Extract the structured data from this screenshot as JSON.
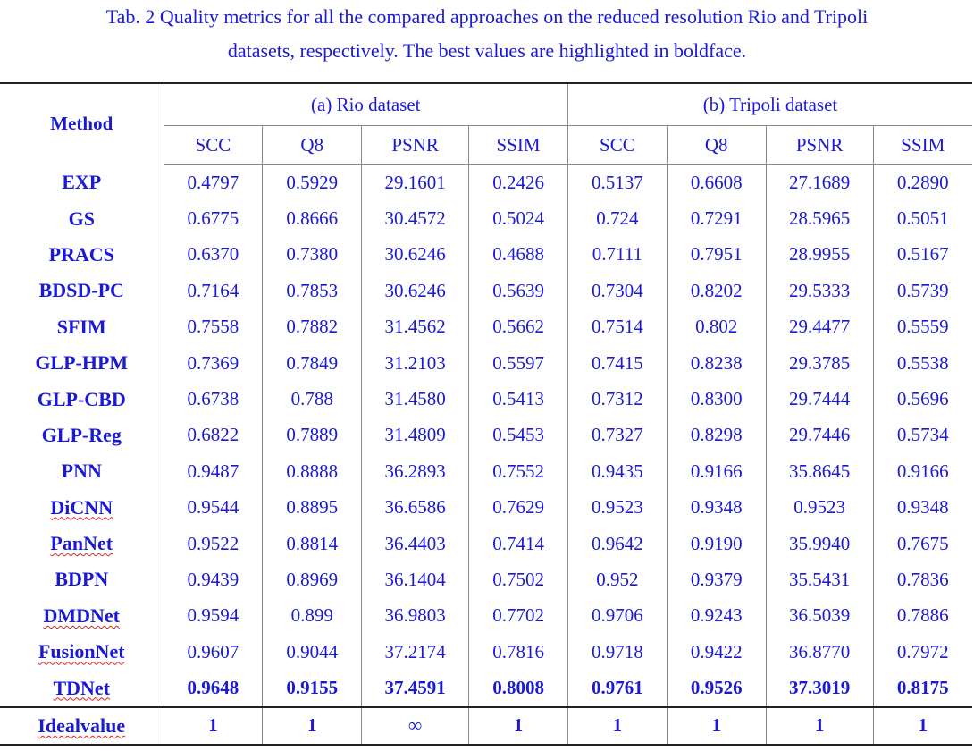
{
  "caption": {
    "line1": "Tab. 2 Quality metrics for all the compared approaches on the reduced resolution Rio and Tripoli",
    "line2": "datasets, respectively. The best values are highlighted in boldface."
  },
  "table": {
    "method_header": "Method",
    "group_a": "(a) Rio dataset",
    "group_b": "(b) Tripoli dataset",
    "metrics": [
      "SCC",
      "Q8",
      "PSNR",
      "SSIM",
      "SCC",
      "Q8",
      "PSNR",
      "SSIM"
    ],
    "rows": [
      {
        "method": "EXP",
        "values": [
          "0.4797",
          "0.5929",
          "29.1601",
          "0.2426",
          "0.5137",
          "0.6608",
          "27.1689",
          "0.2890"
        ]
      },
      {
        "method": "GS",
        "values": [
          "0.6775",
          "0.8666",
          "30.4572",
          "0.5024",
          "0.724",
          "0.7291",
          "28.5965",
          "0.5051"
        ]
      },
      {
        "method": "PRACS",
        "values": [
          "0.6370",
          "0.7380",
          "30.6246",
          "0.4688",
          "0.7111",
          "0.7951",
          "28.9955",
          "0.5167"
        ]
      },
      {
        "method": "BDSD-PC",
        "values": [
          "0.7164",
          "0.7853",
          "30.6246",
          "0.5639",
          "0.7304",
          "0.8202",
          "29.5333",
          "0.5739"
        ]
      },
      {
        "method": "SFIM",
        "values": [
          "0.7558",
          "0.7882",
          "31.4562",
          "0.5662",
          "0.7514",
          "0.802",
          "29.4477",
          "0.5559"
        ]
      },
      {
        "method": "GLP-HPM",
        "values": [
          "0.7369",
          "0.7849",
          "31.2103",
          "0.5597",
          "0.7415",
          "0.8238",
          "29.3785",
          "0.5538"
        ]
      },
      {
        "method": "GLP-CBD",
        "values": [
          "0.6738",
          "0.788",
          "31.4580",
          "0.5413",
          "0.7312",
          "0.8300",
          "29.7444",
          "0.5696"
        ]
      },
      {
        "method": "GLP-Reg",
        "values": [
          "0.6822",
          "0.7889",
          "31.4809",
          "0.5453",
          "0.7327",
          "0.8298",
          "29.7446",
          "0.5734"
        ]
      },
      {
        "method": "PNN",
        "values": [
          "0.9487",
          "0.8888",
          "36.2893",
          "0.7552",
          "0.9435",
          "0.9166",
          "35.8645",
          "0.9166"
        ]
      },
      {
        "method": "DiCNN",
        "values": [
          "0.9544",
          "0.8895",
          "36.6586",
          "0.7629",
          "0.9523",
          "0.9348",
          "0.9523",
          "0.9348"
        ]
      },
      {
        "method": "PanNet",
        "values": [
          "0.9522",
          "0.8814",
          "36.4403",
          "0.7414",
          "0.9642",
          "0.9190",
          "35.9940",
          "0.7675"
        ]
      },
      {
        "method": "BDPN",
        "values": [
          "0.9439",
          "0.8969",
          "36.1404",
          "0.7502",
          "0.952",
          "0.9379",
          "35.5431",
          "0.7836"
        ]
      },
      {
        "method": "DMDNet",
        "values": [
          "0.9594",
          "0.899",
          "36.9803",
          "0.7702",
          "0.9706",
          "0.9243",
          "36.5039",
          "0.7886"
        ]
      },
      {
        "method": "FusionNet",
        "values": [
          "0.9607",
          "0.9044",
          "37.2174",
          "0.7816",
          "0.9718",
          "0.9422",
          "36.8770",
          "0.7972"
        ]
      },
      {
        "method": "TDNet",
        "values": [
          "0.9648",
          "0.9155",
          "37.4591",
          "0.8008",
          "0.9761",
          "0.9526",
          "37.3019",
          "0.8175"
        ]
      }
    ],
    "ideal": {
      "method": "Idealvalue",
      "values": [
        "1",
        "1",
        "∞",
        "1",
        "1",
        "1",
        "1",
        "1"
      ]
    }
  }
}
